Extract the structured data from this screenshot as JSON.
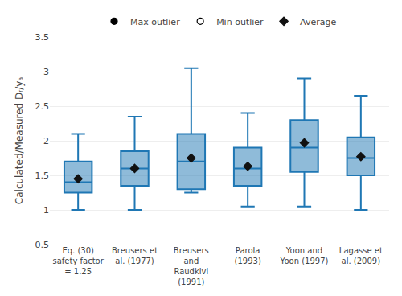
{
  "chart_data": {
    "type": "box",
    "ylabel": "Calculated/Measured Dᵣ/yₐ",
    "categories": [
      "Eq. (30)\nsafety factor\n= 1.25",
      "Breusers et\nal. (1977)",
      "Breusers\nand\nRaudkivi\n(1991)",
      "Parola\n(1993)",
      "Yoon and\nYoon (1997)",
      "Lagasse et\nal. (2009)"
    ],
    "boxes": [
      {
        "whisker_min": 1.0,
        "q1": 1.25,
        "median": 1.4,
        "q3": 1.7,
        "whisker_max": 2.1
      },
      {
        "whisker_min": 1.0,
        "q1": 1.35,
        "median": 1.6,
        "q3": 1.85,
        "whisker_max": 2.35
      },
      {
        "whisker_min": 1.25,
        "q1": 1.3,
        "median": 1.7,
        "q3": 2.1,
        "whisker_max": 3.05
      },
      {
        "whisker_min": 1.05,
        "q1": 1.35,
        "median": 1.6,
        "q3": 1.9,
        "whisker_max": 2.4
      },
      {
        "whisker_min": 1.05,
        "q1": 1.55,
        "median": 1.9,
        "q3": 2.3,
        "whisker_max": 2.9
      },
      {
        "whisker_min": 1.0,
        "q1": 1.5,
        "median": 1.75,
        "q3": 2.05,
        "whisker_max": 2.65
      }
    ],
    "series": [
      {
        "name": "Max outlier",
        "type": "scatter",
        "marker": "circle",
        "color": "#000000",
        "values": [
          null,
          null,
          null,
          null,
          null,
          null
        ]
      },
      {
        "name": "Min outlier",
        "type": "scatter",
        "marker": "circle-open",
        "color": "#000000",
        "values": [
          null,
          null,
          null,
          null,
          null,
          null
        ]
      },
      {
        "name": "Average",
        "type": "scatter",
        "marker": "diamond",
        "color": "#111111",
        "values": [
          1.45,
          1.6,
          1.75,
          1.63,
          1.97,
          1.77
        ]
      }
    ],
    "ylim": [
      0.5,
      3.5
    ],
    "yticks": [
      0.5,
      1.0,
      1.5,
      2.0,
      2.5,
      3.0,
      3.5
    ],
    "grid": true,
    "legend": "top"
  }
}
